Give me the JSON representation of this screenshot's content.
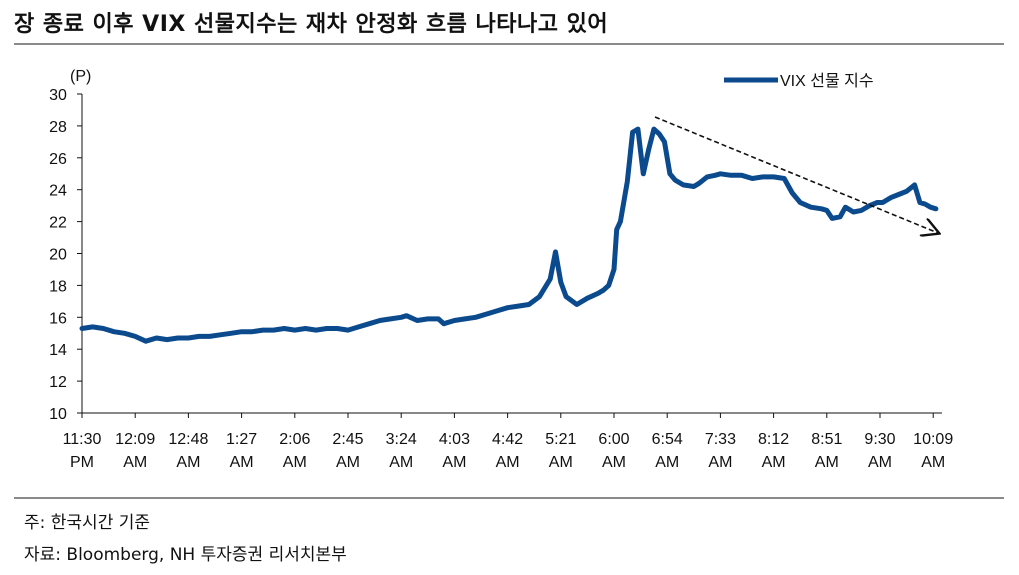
{
  "title": "장 종료 이후 VIX 선물지수는 재차 안정화 흐름 나타나고 있어",
  "notes": {
    "basis": "주: 한국시간 기준",
    "source": "자료: Bloomberg, NH 투자증권 리서치본부"
  },
  "chart_data": {
    "type": "line",
    "unit_label": "(P)",
    "ylim": [
      10,
      30
    ],
    "yticks": [
      10,
      12,
      14,
      16,
      18,
      20,
      22,
      24,
      26,
      28,
      30
    ],
    "x_categories": [
      [
        "11:30",
        "PM"
      ],
      [
        "12:09",
        "AM"
      ],
      [
        "12:48",
        "AM"
      ],
      [
        "1:27",
        "AM"
      ],
      [
        "2:06",
        "AM"
      ],
      [
        "2:45",
        "AM"
      ],
      [
        "3:24",
        "AM"
      ],
      [
        "4:03",
        "AM"
      ],
      [
        "4:42",
        "AM"
      ],
      [
        "5:21",
        "AM"
      ],
      [
        "6:00",
        "AM"
      ],
      [
        "6:54",
        "AM"
      ],
      [
        "7:33",
        "AM"
      ],
      [
        "8:12",
        "AM"
      ],
      [
        "8:51",
        "AM"
      ],
      [
        "9:30",
        "AM"
      ],
      [
        "10:09",
        "AM"
      ]
    ],
    "legend": {
      "label": "VIX 선물 지수",
      "position": "top-right"
    },
    "series_color": "#0c4a8e",
    "annotation": "dashed trend arrow pointing down-right",
    "series": [
      {
        "name": "VIX 선물 지수",
        "points": [
          [
            0.0,
            15.3
          ],
          [
            0.2,
            15.4
          ],
          [
            0.4,
            15.3
          ],
          [
            0.6,
            15.1
          ],
          [
            0.8,
            15.0
          ],
          [
            1.0,
            14.8
          ],
          [
            1.2,
            14.5
          ],
          [
            1.4,
            14.7
          ],
          [
            1.6,
            14.6
          ],
          [
            1.8,
            14.7
          ],
          [
            2.0,
            14.7
          ],
          [
            2.2,
            14.8
          ],
          [
            2.4,
            14.8
          ],
          [
            2.6,
            14.9
          ],
          [
            2.8,
            15.0
          ],
          [
            3.0,
            15.1
          ],
          [
            3.2,
            15.1
          ],
          [
            3.4,
            15.2
          ],
          [
            3.6,
            15.2
          ],
          [
            3.8,
            15.3
          ],
          [
            4.0,
            15.2
          ],
          [
            4.2,
            15.3
          ],
          [
            4.4,
            15.2
          ],
          [
            4.6,
            15.3
          ],
          [
            4.8,
            15.3
          ],
          [
            5.0,
            15.2
          ],
          [
            5.2,
            15.4
          ],
          [
            5.4,
            15.6
          ],
          [
            5.6,
            15.8
          ],
          [
            5.8,
            15.9
          ],
          [
            6.0,
            16.0
          ],
          [
            6.1,
            16.1
          ],
          [
            6.3,
            15.8
          ],
          [
            6.5,
            15.9
          ],
          [
            6.7,
            15.9
          ],
          [
            6.8,
            15.6
          ],
          [
            7.0,
            15.8
          ],
          [
            7.2,
            15.9
          ],
          [
            7.4,
            16.0
          ],
          [
            7.6,
            16.2
          ],
          [
            7.8,
            16.4
          ],
          [
            8.0,
            16.6
          ],
          [
            8.2,
            16.7
          ],
          [
            8.4,
            16.8
          ],
          [
            8.6,
            17.3
          ],
          [
            8.8,
            18.4
          ],
          [
            8.9,
            20.1
          ],
          [
            9.0,
            18.2
          ],
          [
            9.1,
            17.3
          ],
          [
            9.3,
            16.8
          ],
          [
            9.5,
            17.2
          ],
          [
            9.7,
            17.5
          ],
          [
            9.8,
            17.7
          ],
          [
            9.9,
            18.0
          ],
          [
            10.0,
            19.0
          ],
          [
            10.05,
            21.5
          ],
          [
            10.12,
            22.0
          ],
          [
            10.25,
            24.5
          ],
          [
            10.35,
            27.6
          ],
          [
            10.45,
            27.8
          ],
          [
            10.55,
            25.0
          ],
          [
            10.65,
            26.5
          ],
          [
            10.75,
            27.8
          ],
          [
            10.85,
            27.5
          ],
          [
            10.95,
            27.0
          ],
          [
            11.05,
            25.0
          ],
          [
            11.15,
            24.6
          ],
          [
            11.3,
            24.3
          ],
          [
            11.5,
            24.2
          ],
          [
            11.6,
            24.4
          ],
          [
            11.75,
            24.8
          ],
          [
            11.9,
            24.9
          ],
          [
            12.0,
            25.0
          ],
          [
            12.2,
            24.9
          ],
          [
            12.4,
            24.9
          ],
          [
            12.6,
            24.7
          ],
          [
            12.8,
            24.8
          ],
          [
            13.0,
            24.8
          ],
          [
            13.2,
            24.7
          ],
          [
            13.35,
            23.8
          ],
          [
            13.5,
            23.2
          ],
          [
            13.7,
            22.9
          ],
          [
            13.9,
            22.8
          ],
          [
            14.0,
            22.7
          ],
          [
            14.1,
            22.2
          ],
          [
            14.25,
            22.3
          ],
          [
            14.35,
            22.9
          ],
          [
            14.5,
            22.6
          ],
          [
            14.65,
            22.7
          ],
          [
            14.8,
            23.0
          ],
          [
            14.95,
            23.2
          ],
          [
            15.05,
            23.2
          ],
          [
            15.2,
            23.5
          ],
          [
            15.35,
            23.7
          ],
          [
            15.5,
            23.9
          ],
          [
            15.65,
            24.3
          ],
          [
            15.75,
            23.2
          ],
          [
            15.85,
            23.1
          ],
          [
            15.95,
            22.9
          ],
          [
            16.05,
            22.8
          ]
        ]
      }
    ]
  }
}
